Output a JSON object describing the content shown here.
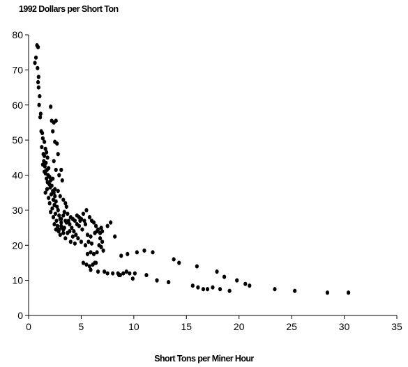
{
  "chart_data": {
    "type": "scatter",
    "title": "",
    "ylabel": "1992 Dollars per Short Ton",
    "xlabel": "Short Tons per Miner Hour",
    "xlim": [
      0,
      35
    ],
    "ylim": [
      0,
      80
    ],
    "xticks": [
      "0",
      "5",
      "10",
      "15",
      "20",
      "25",
      "30",
      "35"
    ],
    "yticks": [
      "0",
      "10",
      "20",
      "30",
      "40",
      "50",
      "60",
      "70",
      "80"
    ],
    "grid": false,
    "marker_color": "#000000",
    "points": [
      [
        0.8,
        77
      ],
      [
        0.9,
        76.5
      ],
      [
        0.7,
        73.5
      ],
      [
        0.6,
        72
      ],
      [
        0.85,
        70.5
      ],
      [
        0.95,
        68
      ],
      [
        0.9,
        66.5
      ],
      [
        0.95,
        65
      ],
      [
        1.05,
        62.5
      ],
      [
        1.0,
        60
      ],
      [
        1.15,
        57.5
      ],
      [
        1.1,
        56.5
      ],
      [
        1.2,
        52.5
      ],
      [
        1.3,
        52
      ],
      [
        1.35,
        50.5
      ],
      [
        1.5,
        49.5
      ],
      [
        1.25,
        48
      ],
      [
        1.6,
        47.5
      ],
      [
        1.4,
        46
      ],
      [
        1.7,
        46.5
      ],
      [
        1.5,
        45.5
      ],
      [
        1.8,
        45
      ],
      [
        1.45,
        44
      ],
      [
        1.65,
        43.5
      ],
      [
        1.35,
        43
      ],
      [
        1.55,
        42.5
      ],
      [
        1.9,
        42
      ],
      [
        1.75,
        41.5
      ],
      [
        1.5,
        41
      ],
      [
        1.6,
        40.5
      ],
      [
        1.85,
        40
      ],
      [
        2.0,
        39.5
      ],
      [
        1.7,
        39
      ],
      [
        2.1,
        38.5
      ],
      [
        1.8,
        38
      ],
      [
        1.95,
        37.5
      ],
      [
        2.2,
        37
      ],
      [
        2.05,
        36.5
      ],
      [
        1.75,
        36
      ],
      [
        2.3,
        35.5
      ],
      [
        1.6,
        35
      ],
      [
        2.4,
        35
      ],
      [
        2.15,
        34.5
      ],
      [
        2.5,
        34
      ],
      [
        1.9,
        33.5
      ],
      [
        2.35,
        33
      ],
      [
        2.6,
        32.5
      ],
      [
        2.0,
        32
      ],
      [
        2.45,
        31.5
      ],
      [
        2.7,
        31
      ],
      [
        2.25,
        30.5
      ],
      [
        2.8,
        30
      ],
      [
        2.1,
        29.5
      ],
      [
        2.55,
        29
      ],
      [
        2.9,
        28.5
      ],
      [
        2.35,
        28
      ],
      [
        3.0,
        27.5
      ],
      [
        2.65,
        27
      ],
      [
        3.1,
        26.5
      ],
      [
        2.45,
        26
      ],
      [
        2.75,
        25.5
      ],
      [
        3.2,
        25
      ],
      [
        2.6,
        24.5
      ],
      [
        2.85,
        24
      ],
      [
        3.3,
        23.5
      ],
      [
        3.0,
        23
      ],
      [
        2.2,
        55.5
      ],
      [
        2.4,
        55
      ],
      [
        2.6,
        55.5
      ],
      [
        2.1,
        59.5
      ],
      [
        2.3,
        52.5
      ],
      [
        2.5,
        49.5
      ],
      [
        2.7,
        49
      ],
      [
        2.8,
        46
      ],
      [
        2.4,
        44
      ],
      [
        2.6,
        41.5
      ],
      [
        2.9,
        40
      ],
      [
        3.1,
        41.5
      ],
      [
        3.2,
        38.5
      ],
      [
        2.3,
        39
      ],
      [
        2.5,
        36
      ],
      [
        2.8,
        35.5
      ],
      [
        3.0,
        34
      ],
      [
        3.3,
        33
      ],
      [
        3.5,
        32
      ],
      [
        3.6,
        31
      ],
      [
        3.4,
        29.5
      ],
      [
        3.7,
        29
      ],
      [
        3.1,
        27.5
      ],
      [
        3.8,
        27
      ],
      [
        4.0,
        28
      ],
      [
        4.2,
        27.5
      ],
      [
        4.4,
        27
      ],
      [
        4.6,
        28.5
      ],
      [
        4.8,
        28
      ],
      [
        5.0,
        27.5
      ],
      [
        5.3,
        27
      ],
      [
        5.5,
        30
      ],
      [
        5.2,
        29
      ],
      [
        5.8,
        28
      ],
      [
        6.0,
        27
      ],
      [
        6.2,
        26.5
      ],
      [
        6.4,
        25.5
      ],
      [
        6.6,
        24.5
      ],
      [
        6.9,
        25
      ],
      [
        7.5,
        25.5
      ],
      [
        7.8,
        26.5
      ],
      [
        8.2,
        22.5
      ],
      [
        6.8,
        22
      ],
      [
        7.0,
        21
      ],
      [
        6.7,
        20
      ],
      [
        6.9,
        19.5
      ],
      [
        7.1,
        18.5
      ],
      [
        6.5,
        18
      ],
      [
        6.2,
        17.5
      ],
      [
        6.0,
        20.5
      ],
      [
        5.7,
        21
      ],
      [
        5.4,
        20
      ],
      [
        5.0,
        21
      ],
      [
        4.7,
        22
      ],
      [
        4.5,
        23
      ],
      [
        4.3,
        24
      ],
      [
        4.1,
        25
      ],
      [
        3.9,
        24
      ],
      [
        3.7,
        23.5
      ],
      [
        3.5,
        22
      ],
      [
        4.0,
        21
      ],
      [
        4.4,
        20.5
      ],
      [
        3.9,
        26
      ],
      [
        4.2,
        22.5
      ],
      [
        3.3,
        28.5
      ],
      [
        3.6,
        26.5
      ],
      [
        4.8,
        25.5
      ],
      [
        5.1,
        24.5
      ],
      [
        5.6,
        23
      ],
      [
        5.9,
        22.5
      ],
      [
        6.3,
        23.5
      ],
      [
        5.2,
        15
      ],
      [
        5.5,
        14.5
      ],
      [
        5.8,
        14
      ],
      [
        6.1,
        14.5
      ],
      [
        6.4,
        15
      ],
      [
        5.9,
        13
      ],
      [
        6.6,
        12.5
      ],
      [
        7.2,
        12.5
      ],
      [
        7.5,
        12
      ],
      [
        8.0,
        12
      ],
      [
        8.5,
        12
      ],
      [
        8.7,
        11.5
      ],
      [
        9.0,
        12
      ],
      [
        9.3,
        12.5
      ],
      [
        8.8,
        17
      ],
      [
        9.4,
        17.5
      ],
      [
        9.6,
        12
      ],
      [
        9.9,
        10.5
      ],
      [
        10.1,
        12
      ],
      [
        10.3,
        18
      ],
      [
        11.0,
        18.5
      ],
      [
        11.2,
        11.5
      ],
      [
        11.8,
        18
      ],
      [
        12.2,
        10
      ],
      [
        13.3,
        9.5
      ],
      [
        13.8,
        16
      ],
      [
        14.3,
        15
      ],
      [
        15.6,
        8.5
      ],
      [
        16.0,
        14
      ],
      [
        16.1,
        8
      ],
      [
        16.6,
        7.5
      ],
      [
        17.0,
        7.5
      ],
      [
        17.5,
        8
      ],
      [
        17.9,
        12.5
      ],
      [
        18.2,
        7.5
      ],
      [
        18.6,
        11
      ],
      [
        19.1,
        7
      ],
      [
        19.8,
        10
      ],
      [
        20.6,
        9
      ],
      [
        21.0,
        8.5
      ],
      [
        23.4,
        7.5
      ],
      [
        25.3,
        7
      ],
      [
        28.4,
        6.5
      ],
      [
        30.4,
        6.5
      ],
      [
        3.5,
        27
      ],
      [
        4.6,
        26
      ],
      [
        5.4,
        26
      ],
      [
        6.8,
        23.5
      ],
      [
        7.0,
        24
      ],
      [
        2.9,
        24.5
      ],
      [
        3.1,
        25.5
      ],
      [
        3.4,
        25
      ],
      [
        3.3,
        24.5
      ],
      [
        4.9,
        27
      ],
      [
        6.5,
        24
      ],
      [
        5.6,
        17.5
      ],
      [
        5.9,
        18
      ],
      [
        6.3,
        15
      ],
      [
        8.6,
        11.5
      ]
    ]
  }
}
